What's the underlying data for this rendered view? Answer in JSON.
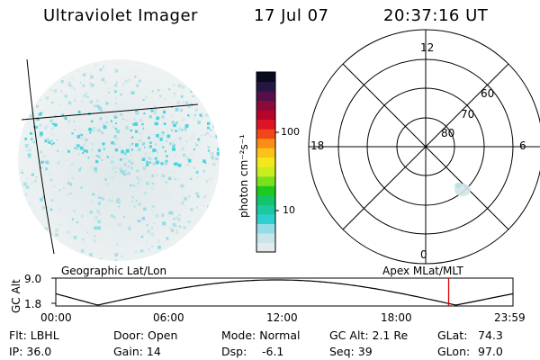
{
  "header": {
    "instrument": "Ultraviolet Imager",
    "date": "17 Jul 07",
    "time": "20:37:16 UT"
  },
  "colorbar": {
    "label": "photon cm⁻²s⁻¹",
    "ticks": [
      "100",
      "10"
    ],
    "colors": [
      "#e4e9ec",
      "#c7e5ea",
      "#95dde6",
      "#2ecfd1",
      "#1bc8a0",
      "#13c46b",
      "#1fc81e",
      "#7be01c",
      "#c8ee1e",
      "#f2e91c",
      "#fcc21a",
      "#fa8d14",
      "#f2461a",
      "#dd1426",
      "#b6052c",
      "#8a0a3c",
      "#55104a",
      "#241842",
      "#0b0b1f"
    ]
  },
  "polar_plot": {
    "mlt_labels": [
      "12",
      "18",
      "6",
      "0"
    ],
    "lat_labels": [
      "60",
      "70",
      "80"
    ]
  },
  "timeline": {
    "left_label": "Geographic Lat/Lon",
    "right_label": "Apex MLat/MLT",
    "axis_title": "GC Alt",
    "y_ticks": [
      "9.0",
      "1.8"
    ],
    "x_ticks": [
      "00:00",
      "06:00",
      "12:00",
      "18:00",
      "23:59"
    ],
    "marker_time_hours": 20.62
  },
  "info": {
    "row1": {
      "filter": "Flt: LBHL",
      "door": "Door: Open",
      "mode": "Mode: Normal",
      "gc_alt": "GC Alt: 2.1 Re",
      "glat_label": "GLat:",
      "glat_value": "74.3"
    },
    "row2": {
      "ip": "IP: 36.0",
      "gain": "Gain: 14",
      "dsp_label": "Dsp:",
      "dsp_value": "-6.1",
      "seq": "Seq: 39",
      "glon_label": "GLon:",
      "glon_value": "97.0"
    }
  }
}
